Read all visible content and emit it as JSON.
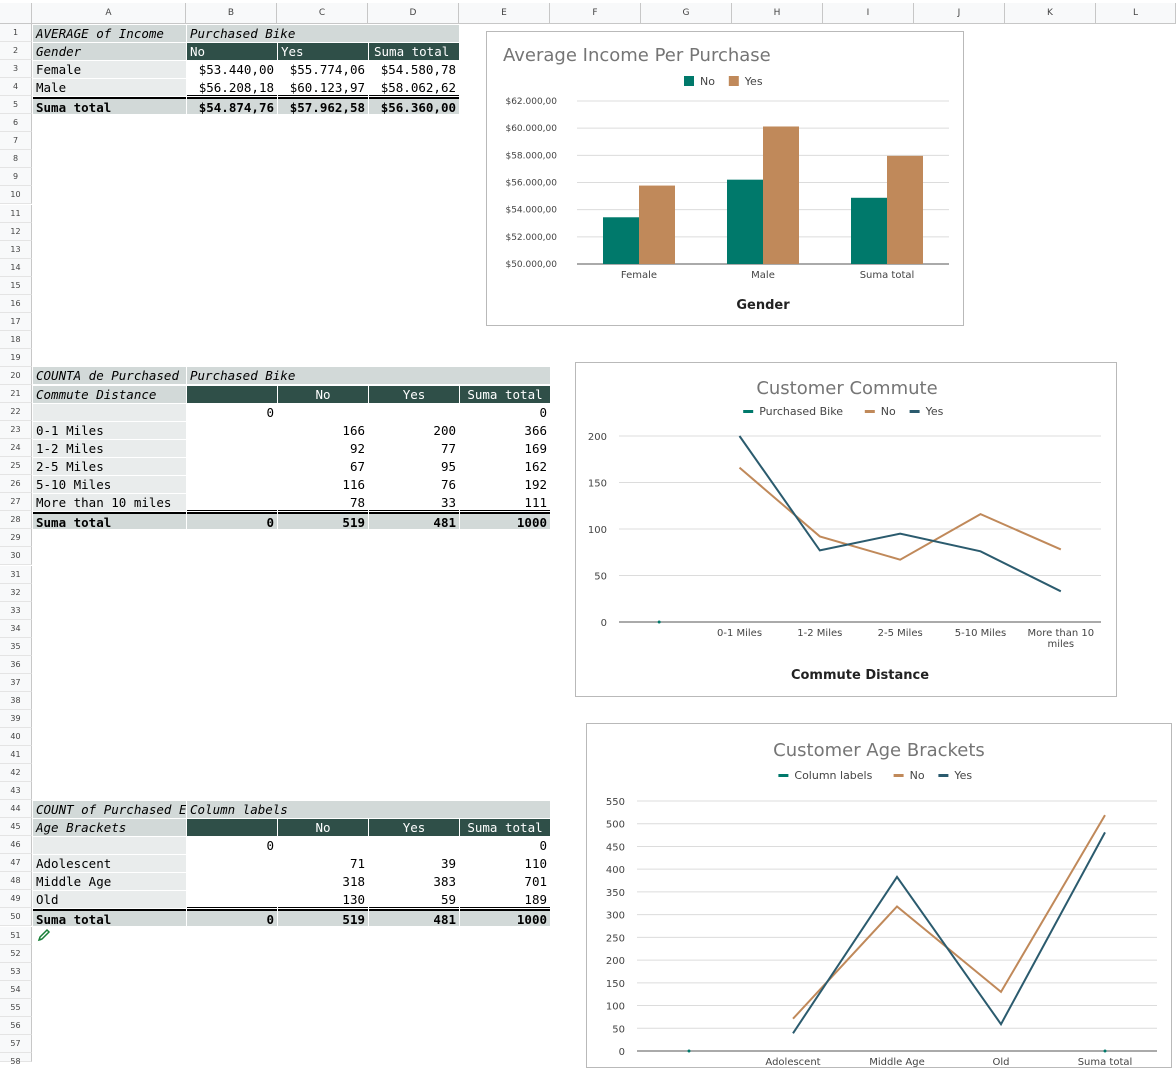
{
  "columns": [
    "A",
    "B",
    "C",
    "D",
    "E",
    "F",
    "G",
    "H",
    "I",
    "J",
    "K",
    "L"
  ],
  "rows": [
    "1",
    "2",
    "3",
    "4",
    "5",
    "6",
    "7",
    "8",
    "9",
    "10",
    "11",
    "12",
    "13",
    "14",
    "15",
    "16",
    "17",
    "18",
    "19",
    "20",
    "21",
    "22",
    "23",
    "24",
    "25",
    "26",
    "27",
    "28",
    "29",
    "30",
    "31",
    "32",
    "33",
    "34",
    "35",
    "36",
    "37",
    "38",
    "39",
    "40",
    "41",
    "42",
    "43",
    "44",
    "45",
    "46",
    "47",
    "48",
    "49",
    "50",
    "51",
    "52",
    "53",
    "54",
    "55",
    "56",
    "57",
    "58"
  ],
  "pivot1": {
    "corner_label": "AVERAGE of Income",
    "col_field": "Purchased Bike",
    "row_field": "Gender",
    "col_headers": [
      "No",
      "Yes",
      "Suma total"
    ],
    "rows": [
      {
        "label": "Female",
        "values": [
          "$53.440,00",
          "$55.774,06",
          "$54.580,78"
        ]
      },
      {
        "label": "Male",
        "values": [
          "$56.208,18",
          "$60.123,97",
          "$58.062,62"
        ]
      }
    ],
    "total": {
      "label": "Suma total",
      "values": [
        "$54.874,76",
        "$57.962,58",
        "$56.360,00"
      ]
    }
  },
  "pivot2": {
    "corner_label": "COUNTA de Purchased",
    "col_field": "Purchased Bike",
    "row_field": "Commute Distance",
    "col_headers": [
      "No",
      "Yes",
      "Suma total"
    ],
    "blank_row": [
      "0",
      "",
      "",
      "0"
    ],
    "rows": [
      {
        "label": "0-1 Miles",
        "values": [
          "",
          "166",
          "200",
          "366"
        ]
      },
      {
        "label": "1-2 Miles",
        "values": [
          "",
          "92",
          "77",
          "169"
        ]
      },
      {
        "label": "2-5 Miles",
        "values": [
          "",
          "67",
          "95",
          "162"
        ]
      },
      {
        "label": "5-10 Miles",
        "values": [
          "",
          "116",
          "76",
          "192"
        ]
      },
      {
        "label": "More than 10 miles",
        "values": [
          "",
          "78",
          "33",
          "111"
        ]
      }
    ],
    "total": {
      "label": "Suma total",
      "values": [
        "0",
        "519",
        "481",
        "1000"
      ]
    }
  },
  "pivot3": {
    "corner_label": "COUNT of Purchased E",
    "col_field": "Column labels",
    "row_field": "Age Brackets",
    "col_headers": [
      "No",
      "Yes",
      "Suma total"
    ],
    "blank_row": [
      "0",
      "",
      "",
      "0"
    ],
    "rows": [
      {
        "label": "Adolescent",
        "values": [
          "",
          "71",
          "39",
          "110"
        ]
      },
      {
        "label": "Middle Age",
        "values": [
          "",
          "318",
          "383",
          "701"
        ]
      },
      {
        "label": "Old",
        "values": [
          "",
          "130",
          "59",
          "189"
        ]
      }
    ],
    "total": {
      "label": "Suma total",
      "values": [
        "0",
        "519",
        "481",
        "1000"
      ]
    }
  },
  "colors": {
    "teal": "#00796b",
    "tan": "#c0895a",
    "navy": "#2b5b6e",
    "dark_header": "#2f4f48"
  },
  "chart_data": [
    {
      "type": "bar",
      "title": "Average Income Per Purchase",
      "xlabel": "Gender",
      "ylabel": "",
      "categories": [
        "Female",
        "Male",
        "Suma total"
      ],
      "series": [
        {
          "name": "No",
          "values": [
            53440.0,
            56208.18,
            54874.76
          ],
          "color": "#00796b"
        },
        {
          "name": "Yes",
          "values": [
            55774.06,
            60123.97,
            57962.58
          ],
          "color": "#c0895a"
        }
      ],
      "ylim": [
        50000,
        62000
      ],
      "yticks": [
        "$50.000,00",
        "$52.000,00",
        "$54.000,00",
        "$56.000,00",
        "$58.000,00",
        "$60.000,00",
        "$62.000,00"
      ],
      "grid": true,
      "legend": "top"
    },
    {
      "type": "line",
      "title": "Customer Commute",
      "xlabel": "Commute Distance",
      "ylabel": "",
      "categories": [
        "",
        "0-1 Miles",
        "1-2 Miles",
        "2-5 Miles",
        "5-10 Miles",
        "More than 10 miles"
      ],
      "category_lines": [
        [
          ""
        ],
        [
          "0-1 Miles"
        ],
        [
          "1-2 Miles"
        ],
        [
          "2-5 Miles"
        ],
        [
          "5-10 Miles"
        ],
        [
          "More than 10",
          "miles"
        ]
      ],
      "series": [
        {
          "name": "Purchased Bike",
          "values": [
            0,
            null,
            null,
            null,
            null,
            null
          ],
          "color": "#00796b"
        },
        {
          "name": "No",
          "values": [
            null,
            166,
            92,
            67,
            116,
            78
          ],
          "color": "#c0895a"
        },
        {
          "name": "Yes",
          "values": [
            null,
            200,
            77,
            95,
            76,
            33
          ],
          "color": "#2b5b6e"
        }
      ],
      "ylim": [
        0,
        200
      ],
      "yticks": [
        "0",
        "50",
        "100",
        "150",
        "200"
      ],
      "grid": true,
      "legend": "top"
    },
    {
      "type": "line",
      "title": "Customer Age Brackets",
      "xlabel": "",
      "ylabel": "",
      "categories": [
        "",
        "Adolescent",
        "Middle Age",
        "Old",
        "Suma total"
      ],
      "series": [
        {
          "name": "Column labels",
          "values": [
            0,
            null,
            null,
            null,
            0
          ],
          "color": "#00796b"
        },
        {
          "name": "No",
          "values": [
            null,
            71,
            318,
            130,
            519
          ],
          "color": "#c0895a"
        },
        {
          "name": "Yes",
          "values": [
            null,
            39,
            383,
            59,
            481
          ],
          "color": "#2b5b6e"
        }
      ],
      "ylim": [
        0,
        550
      ],
      "yticks": [
        "0",
        "50",
        "100",
        "150",
        "200",
        "250",
        "300",
        "350",
        "400",
        "450",
        "500",
        "550"
      ],
      "grid": true,
      "legend": "top"
    }
  ]
}
